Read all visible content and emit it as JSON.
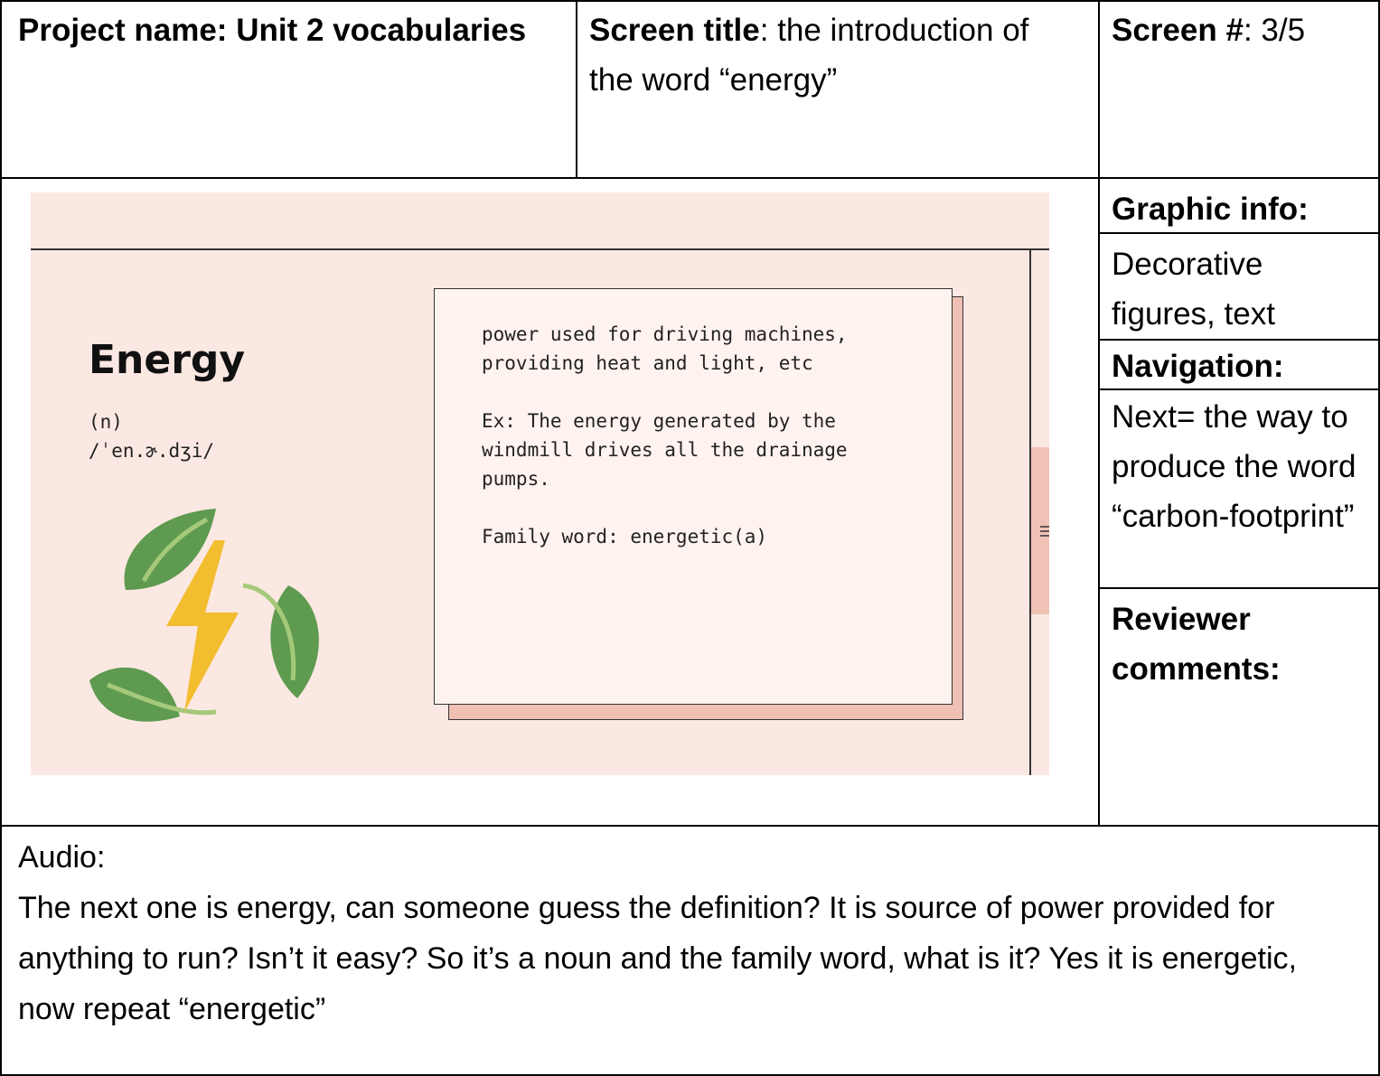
{
  "header": {
    "project": "Project name: Unit 2 vocabularies",
    "screen_title": {
      "label": "Screen title",
      "value": ": the introduction of the word “energy”"
    },
    "screen_number": {
      "label": "Screen #",
      "value": ": 3/5"
    }
  },
  "slide": {
    "word": "Energy",
    "part_of_speech": "(n)",
    "pronunciation": "/ˈen.ɚ.dʒi/",
    "definition": "power used for driving machines, providing heat and light, etc",
    "example": "Ex: The energy generated by the windmill drives all the drainage pumps.",
    "family": "Family word: energetic(a)"
  },
  "side": {
    "graphic_info": {
      "label": "Graphic info:",
      "value": "Decorative figures, text"
    },
    "navigation": {
      "label": "Navigation:",
      "value": "Next= the way to produce the word “carbon-footprint”"
    },
    "reviewer": {
      "label": "Reviewer comments:"
    }
  },
  "audio": {
    "label": "Audio:",
    "text": "The next one is energy, can someone guess the definition? It is source of power provided for anything to run? Isn’t it easy? So it’s a noun and the family word, what is it? Yes it is energetic, now repeat “energetic”"
  }
}
